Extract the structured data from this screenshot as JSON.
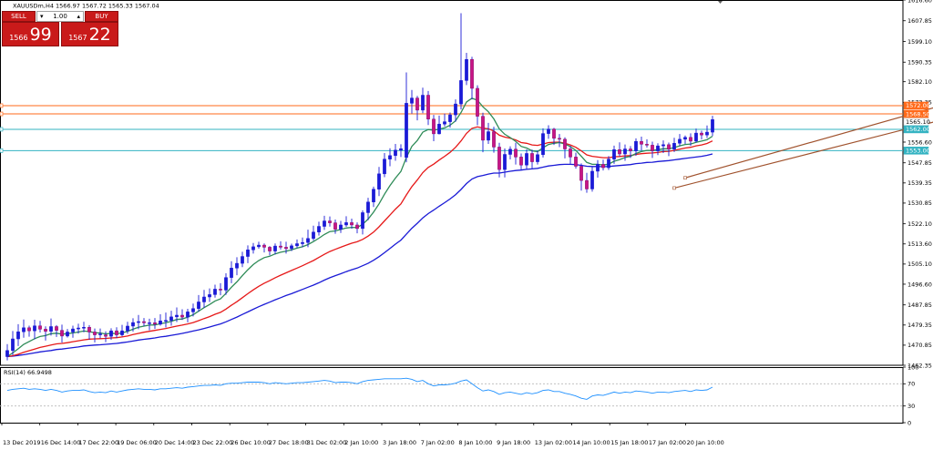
{
  "chart_data": {
    "type": "candlestick",
    "symbol_line": "XAUUSDm,H4  1566.97 1567.72 1565.33 1567.04",
    "rsi_label": "RSI(14) 66.9498",
    "price_ticks": [
      "1616.60",
      "1607.85",
      "1599.10",
      "1590.35",
      "1582.10",
      "1573.35",
      "1556.60",
      "1547.85",
      "1539.35",
      "1530.85",
      "1522.10",
      "1513.60",
      "1505.10",
      "1496.60",
      "1487.85",
      "1479.35",
      "1470.85",
      "1462.35"
    ],
    "rsi_ticks": [
      "100",
      "70",
      "30",
      "0"
    ],
    "time_ticks": [
      "13 Dec 2019",
      "16 Dec 14:00",
      "17 Dec 22:00",
      "19 Dec 06:00",
      "20 Dec 14:00",
      "23 Dec 22:00",
      "26 Dec 10:00",
      "27 Dec 18:00",
      "31 Dec 02:00",
      "2 Jan 10:00",
      "3 Jan 18:00",
      "7 Jan 02:00",
      "8 Jan 10:00",
      "9 Jan 18:00",
      "13 Jan 02:00",
      "14 Jan 10:00",
      "15 Jan 18:00",
      "17 Jan 02:00",
      "20 Jan 10:00"
    ],
    "price_tags": [
      {
        "label": "1572.00",
        "price": 1572.0,
        "color": "#ff6a1a"
      },
      {
        "label": "1568.50",
        "price": 1568.5,
        "color": "#ff6a1a"
      },
      {
        "label": "1565.10",
        "price": 1565.1,
        "color": "#ffffff"
      },
      {
        "label": "1562.00",
        "price": 1562.0,
        "color": "#33b3c2"
      },
      {
        "label": "1553.00",
        "price": 1553.0,
        "color": "#33b3c2"
      }
    ],
    "horizontal_levels": [
      {
        "price": 1572.0,
        "color": "#ff6a1a"
      },
      {
        "price": 1568.5,
        "color": "#ff6a1a"
      },
      {
        "price": 1562.0,
        "color": "#33b3c2"
      },
      {
        "price": 1553.0,
        "color": "#33b3c2"
      }
    ],
    "trend_lines": [
      {
        "x1": 122,
        "p1": 1537.2,
        "x2": 200,
        "p2": 1583.0
      },
      {
        "x1": 124,
        "p1": 1541.5,
        "x2": 200,
        "p2": 1591.0
      }
    ],
    "candles": [
      [
        1466.0,
        1468.6,
        1464.4,
        1471.3
      ],
      [
        1468.6,
        1473.5,
        1466.6,
        1476.8
      ],
      [
        1473.5,
        1476.5,
        1470.5,
        1479.7
      ],
      [
        1476.5,
        1478.2,
        1474.0,
        1481.7
      ],
      [
        1478.2,
        1476.9,
        1474.4,
        1479.1
      ],
      [
        1476.9,
        1479.0,
        1473.3,
        1481.6
      ],
      [
        1479.0,
        1477.6,
        1476.2,
        1481.1
      ],
      [
        1477.6,
        1476.7,
        1472.8,
        1478.8
      ],
      [
        1476.7,
        1478.7,
        1474.9,
        1482.1
      ],
      [
        1478.7,
        1477.1,
        1474.3,
        1479.3
      ],
      [
        1477.1,
        1474.7,
        1471.9,
        1479.5
      ],
      [
        1474.7,
        1476.4,
        1474.1,
        1477.7
      ],
      [
        1476.4,
        1477.7,
        1474.0,
        1479.1
      ],
      [
        1477.7,
        1478.1,
        1475.7,
        1479.9
      ],
      [
        1478.1,
        1478.4,
        1476.3,
        1480.7
      ],
      [
        1478.4,
        1476.4,
        1473.2,
        1479.3
      ],
      [
        1476.4,
        1475.2,
        1472.0,
        1477.9
      ],
      [
        1475.2,
        1475.6,
        1473.7,
        1477.9
      ],
      [
        1475.2,
        1474.6,
        1472.1,
        1476.7
      ],
      [
        1474.6,
        1476.9,
        1473.1,
        1478.0
      ],
      [
        1476.9,
        1475.2,
        1473.9,
        1478.4
      ],
      [
        1475.2,
        1476.9,
        1474.5,
        1479.4
      ],
      [
        1476.9,
        1478.9,
        1475.6,
        1480.7
      ],
      [
        1478.9,
        1480.4,
        1476.6,
        1482.2
      ],
      [
        1480.4,
        1480.8,
        1477.6,
        1483.6
      ],
      [
        1480.8,
        1480.3,
        1478.9,
        1482.3
      ],
      [
        1480.3,
        1480.3,
        1477.1,
        1482.0
      ],
      [
        1480.3,
        1479.7,
        1477.7,
        1482.3
      ],
      [
        1479.7,
        1481.1,
        1479.1,
        1483.9
      ],
      [
        1481.1,
        1481.3,
        1478.3,
        1484.6
      ],
      [
        1481.3,
        1482.8,
        1479.1,
        1485.4
      ],
      [
        1482.8,
        1483.5,
        1480.6,
        1486.8
      ],
      [
        1483.5,
        1482.7,
        1481.5,
        1486.0
      ],
      [
        1482.7,
        1484.9,
        1480.5,
        1486.2
      ],
      [
        1484.9,
        1486.3,
        1483.0,
        1488.4
      ],
      [
        1486.3,
        1489.1,
        1485.0,
        1492.0
      ],
      [
        1489.1,
        1491.2,
        1486.6,
        1494.2
      ],
      [
        1491.2,
        1492.2,
        1489.1,
        1494.8
      ],
      [
        1492.2,
        1494.5,
        1490.9,
        1496.4
      ],
      [
        1494.5,
        1494.1,
        1491.9,
        1497.0
      ],
      [
        1494.1,
        1499.4,
        1492.1,
        1501.2
      ],
      [
        1499.4,
        1503.4,
        1497.0,
        1506.3
      ],
      [
        1503.4,
        1505.4,
        1500.4,
        1508.0
      ],
      [
        1505.4,
        1508.3,
        1503.8,
        1510.3
      ],
      [
        1508.3,
        1511.1,
        1505.5,
        1513.0
      ],
      [
        1511.1,
        1512.4,
        1509.5,
        1514.0
      ],
      [
        1512.4,
        1513.1,
        1511.6,
        1514.5
      ],
      [
        1513.1,
        1512.2,
        1510.0,
        1513.8
      ],
      [
        1512.2,
        1510.6,
        1508.8,
        1512.7
      ],
      [
        1510.6,
        1512.7,
        1509.2,
        1513.8
      ],
      [
        1512.7,
        1512.2,
        1511.2,
        1514.7
      ],
      [
        1512.2,
        1511.6,
        1509.5,
        1514.5
      ],
      [
        1511.6,
        1512.8,
        1510.6,
        1513.7
      ],
      [
        1512.8,
        1513.7,
        1511.9,
        1515.5
      ],
      [
        1513.7,
        1514.2,
        1512.2,
        1516.3
      ],
      [
        1514.2,
        1515.9,
        1512.2,
        1519.6
      ],
      [
        1515.9,
        1518.6,
        1515.0,
        1521.3
      ],
      [
        1518.6,
        1521.0,
        1517.1,
        1523.0
      ],
      [
        1521.0,
        1523.3,
        1519.5,
        1525.5
      ],
      [
        1523.3,
        1522.5,
        1520.9,
        1525.2
      ],
      [
        1522.5,
        1519.8,
        1517.9,
        1523.9
      ],
      [
        1519.8,
        1521.6,
        1518.2,
        1523.3
      ],
      [
        1521.6,
        1522.6,
        1520.8,
        1525.3
      ],
      [
        1522.6,
        1521.6,
        1520.0,
        1524.3
      ],
      [
        1521.6,
        1520.1,
        1518.1,
        1522.7
      ],
      [
        1520.1,
        1526.8,
        1517.6,
        1527.8
      ],
      [
        1526.8,
        1531.3,
        1523.6,
        1533.1
      ],
      [
        1531.3,
        1536.7,
        1529.2,
        1537.8
      ],
      [
        1536.7,
        1543.2,
        1533.8,
        1546.1
      ],
      [
        1543.2,
        1549.4,
        1541.8,
        1552.0
      ],
      [
        1549.4,
        1550.9,
        1546.4,
        1554.0
      ],
      [
        1550.9,
        1553.2,
        1548.7,
        1555.8
      ],
      [
        1553.2,
        1553.8,
        1550.3,
        1555.7
      ],
      [
        1550.1,
        1573.0,
        1548.1,
        1586.0
      ],
      [
        1573.0,
        1575.2,
        1568.6,
        1578.6
      ],
      [
        1575.2,
        1570.1,
        1565.8,
        1576.1
      ],
      [
        1570.1,
        1576.4,
        1568.8,
        1579.6
      ],
      [
        1576.4,
        1566.3,
        1563.8,
        1578.2
      ],
      [
        1566.3,
        1560.1,
        1557.0,
        1568.1
      ],
      [
        1560.1,
        1564.2,
        1559.8,
        1567.8
      ],
      [
        1564.2,
        1565.2,
        1563.2,
        1568.6
      ],
      [
        1565.2,
        1568.1,
        1562.7,
        1569.1
      ],
      [
        1568.1,
        1572.7,
        1565.2,
        1574.6
      ],
      [
        1572.7,
        1582.6,
        1570.4,
        1611.0
      ],
      [
        1582.6,
        1591.5,
        1580.7,
        1594.3
      ],
      [
        1591.5,
        1579.3,
        1574.6,
        1592.6
      ],
      [
        1579.3,
        1567.5,
        1563.7,
        1580.6
      ],
      [
        1567.5,
        1557.4,
        1552.3,
        1569.0
      ],
      [
        1557.4,
        1561.0,
        1555.8,
        1564.7
      ],
      [
        1561.0,
        1554.5,
        1552.1,
        1563.1
      ],
      [
        1554.5,
        1545.0,
        1541.7,
        1556.3
      ],
      [
        1545.0,
        1551.4,
        1541.7,
        1553.9
      ],
      [
        1551.4,
        1553.6,
        1549.3,
        1554.8
      ],
      [
        1553.6,
        1550.3,
        1547.1,
        1556.3
      ],
      [
        1550.3,
        1546.9,
        1544.6,
        1551.8
      ],
      [
        1546.9,
        1551.8,
        1545.0,
        1553.5
      ],
      [
        1551.8,
        1548.3,
        1545.5,
        1553.4
      ],
      [
        1548.3,
        1551.3,
        1547.1,
        1552.9
      ],
      [
        1551.3,
        1560.2,
        1550.1,
        1562.4
      ],
      [
        1560.2,
        1562.1,
        1558.0,
        1563.7
      ],
      [
        1562.1,
        1558.2,
        1555.4,
        1562.6
      ],
      [
        1558.2,
        1557.8,
        1554.5,
        1560.0
      ],
      [
        1557.8,
        1553.7,
        1549.7,
        1558.6
      ],
      [
        1553.7,
        1550.3,
        1547.4,
        1555.0
      ],
      [
        1550.3,
        1546.4,
        1545.4,
        1552.1
      ],
      [
        1546.4,
        1540.4,
        1536.1,
        1547.6
      ],
      [
        1540.4,
        1536.8,
        1535.2,
        1543.6
      ],
      [
        1536.8,
        1544.3,
        1535.7,
        1546.2
      ],
      [
        1544.3,
        1547.2,
        1541.6,
        1549.0
      ],
      [
        1547.2,
        1545.8,
        1544.6,
        1549.2
      ],
      [
        1545.8,
        1549.4,
        1544.8,
        1550.7
      ],
      [
        1549.4,
        1553.4,
        1547.4,
        1555.1
      ],
      [
        1553.4,
        1551.6,
        1550.6,
        1556.5
      ],
      [
        1551.6,
        1553.7,
        1548.7,
        1555.6
      ],
      [
        1553.7,
        1552.9,
        1549.9,
        1554.9
      ],
      [
        1552.9,
        1556.9,
        1550.8,
        1558.2
      ],
      [
        1556.9,
        1555.7,
        1553.0,
        1558.9
      ],
      [
        1555.7,
        1555.3,
        1554.3,
        1557.8
      ],
      [
        1555.3,
        1552.9,
        1549.9,
        1556.8
      ],
      [
        1552.9,
        1555.0,
        1551.1,
        1556.1
      ],
      [
        1555.0,
        1555.5,
        1552.0,
        1557.3
      ],
      [
        1555.5,
        1553.6,
        1550.7,
        1556.4
      ],
      [
        1553.6,
        1556.1,
        1552.4,
        1558.4
      ],
      [
        1556.1,
        1557.8,
        1555.0,
        1560.0
      ],
      [
        1557.8,
        1558.6,
        1555.8,
        1559.4
      ],
      [
        1558.6,
        1557.0,
        1555.0,
        1560.3
      ],
      [
        1557.0,
        1560.4,
        1556.4,
        1562.3
      ],
      [
        1560.4,
        1559.6,
        1557.7,
        1561.4
      ],
      [
        1559.6,
        1560.8,
        1558.3,
        1563.6
      ],
      [
        1560.8,
        1566.1,
        1559.2,
        1567.7
      ]
    ],
    "ema_green": [
      1466.0,
      1467.6,
      1469.3,
      1471.2,
      1472.4,
      1473.6,
      1474.5,
      1474.9,
      1475.7,
      1475.9,
      1475.5,
      1475.7,
      1476.0,
      1476.4,
      1476.8,
      1476.6,
      1476.1,
      1476.0,
      1475.6,
      1475.9,
      1475.7,
      1476.0,
      1476.7,
      1477.6,
      1478.4,
      1478.9,
      1479.3,
      1479.4,
      1479.9,
      1480.3,
      1480.9,
      1481.7,
      1481.9,
      1482.7,
      1483.7,
      1485.2,
      1486.7,
      1488.0,
      1489.5,
      1490.4,
      1492.7,
      1495.3,
      1497.6,
      1500.2,
      1502.7,
      1504.9,
      1506.6,
      1507.8,
      1508.4,
      1509.4,
      1510.1,
      1510.5,
      1511.1,
      1511.8,
      1512.4,
      1513.3,
      1514.6,
      1516.0,
      1517.6,
      1518.8,
      1519.1,
      1519.7,
      1520.3,
      1520.6,
      1520.5,
      1521.9,
      1524.1,
      1527.0,
      1530.5,
      1534.6,
      1538.2,
      1541.4,
      1544.2,
      1550.1,
      1554.8,
      1557.3,
      1560.8,
      1561.9,
      1561.6,
      1562.1,
      1562.6,
      1563.7,
      1565.6,
      1569.1,
      1573.5,
      1575.1,
      1574.3,
      1571.5,
      1569.4,
      1566.4,
      1562.2,
      1559.9,
      1558.5,
      1556.9,
      1554.8,
      1554.1,
      1552.9,
      1552.6,
      1554.2,
      1555.6,
      1556.1,
      1556.4,
      1555.8,
      1554.7,
      1553.1,
      1550.6,
      1548.0,
      1547.2,
      1547.2,
      1546.9,
      1547.3,
      1548.5,
      1549.2,
      1550.1,
      1550.6,
      1551.8,
      1552.6,
      1553.1,
      1553.1,
      1553.4,
      1553.8,
      1553.8,
      1554.3,
      1555.0,
      1555.6,
      1555.8,
      1556.5,
      1557.0,
      1557.6,
      1559.1
    ],
    "ema_red": [
      1466.0,
      1466.4,
      1467.0,
      1467.8,
      1468.5,
      1469.2,
      1469.9,
      1470.4,
      1470.9,
      1471.4,
      1471.6,
      1471.9,
      1472.3,
      1472.7,
      1473.1,
      1473.4,
      1473.5,
      1473.6,
      1473.7,
      1473.9,
      1474.0,
      1474.3,
      1474.7,
      1475.3,
      1475.8,
      1476.3,
      1476.7,
      1477.1,
      1477.5,
      1477.9,
      1478.4,
      1478.9,
      1479.3,
      1479.8,
      1480.4,
      1481.2,
      1482.1,
      1482.9,
      1483.9,
      1484.7,
      1486.1,
      1487.7,
      1489.2,
      1490.9,
      1492.6,
      1494.2,
      1495.7,
      1497.0,
      1498.1,
      1499.3,
      1500.4,
      1501.4,
      1502.4,
      1503.4,
      1504.4,
      1505.5,
      1506.6,
      1507.9,
      1509.2,
      1510.4,
      1511.3,
      1512.2,
      1513.1,
      1513.9,
      1514.5,
      1515.5,
      1516.9,
      1518.6,
      1520.8,
      1523.3,
      1525.8,
      1528.3,
      1530.5,
      1534.3,
      1537.8,
      1540.6,
      1543.7,
      1545.9,
      1547.3,
      1549.0,
      1550.6,
      1552.3,
      1554.4,
      1557.1,
      1560.3,
      1562.4,
      1563.0,
      1562.5,
      1562.2,
      1561.3,
      1559.5,
      1558.7,
      1558.2,
      1557.5,
      1556.4,
      1556.1,
      1555.4,
      1555.2,
      1555.8,
      1556.4,
      1556.5,
      1556.6,
      1556.1,
      1555.4,
      1554.4,
      1552.9,
      1551.2,
      1550.6,
      1550.3,
      1550.0,
      1550.0,
      1550.4,
      1550.5,
      1550.8,
      1550.9,
      1551.4,
      1551.7,
      1551.9,
      1552.0,
      1552.2,
      1552.6,
      1552.7,
      1553.1,
      1553.6,
      1554.1,
      1554.4,
      1555.0,
      1555.4,
      1556.0,
      1557.1
    ],
    "ema_blue": [
      1466.0,
      1466.2,
      1466.5,
      1466.8,
      1467.2,
      1467.6,
      1468.0,
      1468.3,
      1468.6,
      1469.0,
      1469.2,
      1469.5,
      1469.8,
      1470.1,
      1470.5,
      1470.7,
      1470.9,
      1471.0,
      1471.2,
      1471.4,
      1471.6,
      1471.9,
      1472.2,
      1472.6,
      1473.0,
      1473.3,
      1473.6,
      1473.9,
      1474.3,
      1474.6,
      1475.0,
      1475.4,
      1475.8,
      1476.3,
      1476.8,
      1477.3,
      1477.9,
      1478.5,
      1479.2,
      1479.8,
      1480.7,
      1481.7,
      1482.7,
      1483.8,
      1484.9,
      1486.0,
      1487.1,
      1488.1,
      1489.0,
      1490.0,
      1490.9,
      1491.8,
      1492.6,
      1493.5,
      1494.4,
      1495.3,
      1496.2,
      1497.2,
      1498.3,
      1499.3,
      1500.2,
      1501.0,
      1501.9,
      1502.7,
      1503.4,
      1504.4,
      1505.4,
      1506.7,
      1508.2,
      1509.9,
      1511.7,
      1513.5,
      1515.2,
      1517.7,
      1520.2,
      1522.3,
      1524.6,
      1526.4,
      1527.9,
      1529.5,
      1531.0,
      1532.6,
      1534.4,
      1536.6,
      1539.1,
      1541.0,
      1542.0,
      1542.5,
      1543.1,
      1543.5,
      1543.5,
      1543.9,
      1544.3,
      1544.6,
      1544.8,
      1545.1,
      1545.3,
      1545.5,
      1546.0,
      1546.5,
      1546.8,
      1547.1,
      1547.2,
      1547.2,
      1547.1,
      1546.8,
      1546.4,
      1546.3,
      1546.3,
      1546.2,
      1546.3,
      1546.5,
      1546.7,
      1546.9,
      1547.1,
      1547.5,
      1547.7,
      1548.0,
      1548.1,
      1548.4,
      1548.6,
      1548.8,
      1549.1,
      1549.4,
      1549.7,
      1550.0,
      1550.3,
      1550.6,
      1551.0,
      1551.6
    ],
    "rsi": [
      58,
      60,
      61,
      62,
      60,
      61,
      60,
      58,
      60,
      58,
      55,
      57,
      58,
      58,
      59,
      56,
      54,
      55,
      54,
      57,
      55,
      57,
      59,
      60,
      61,
      60,
      60,
      59,
      61,
      61,
      62,
      63,
      62,
      64,
      65,
      66,
      67,
      67,
      68,
      67,
      70,
      71,
      71,
      72,
      73,
      73,
      73,
      72,
      70,
      72,
      71,
      70,
      71,
      72,
      72,
      73,
      74,
      75,
      76,
      75,
      72,
      73,
      73,
      72,
      70,
      74,
      76,
      77,
      78,
      79,
      79,
      79,
      79,
      80,
      78,
      74,
      76,
      70,
      66,
      68,
      68,
      69,
      71,
      75,
      77,
      70,
      63,
      57,
      59,
      56,
      51,
      54,
      55,
      53,
      51,
      54,
      52,
      54,
      58,
      59,
      56,
      56,
      53,
      51,
      48,
      44,
      42,
      48,
      50,
      49,
      52,
      55,
      53,
      55,
      54,
      57,
      56,
      55,
      53,
      55,
      55,
      54,
      56,
      57,
      58,
      56,
      59,
      58,
      59,
      64
    ]
  }
}
